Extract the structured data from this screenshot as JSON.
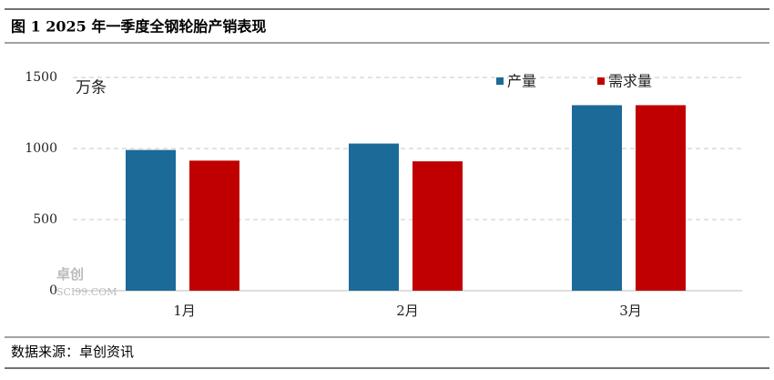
{
  "chart_data": {
    "type": "bar",
    "title": "图 1 2025 年一季度全钢轮胎产销表现",
    "y_label": "万条",
    "categories": [
      "1月",
      "2月",
      "3月"
    ],
    "series": [
      {
        "name": "产量",
        "color": "#1b6a98",
        "values": [
          990,
          1035,
          1305
        ]
      },
      {
        "name": "需求量",
        "color": "#c00000",
        "values": [
          915,
          910,
          1305
        ]
      }
    ],
    "ylim": [
      0,
      1500
    ],
    "yticks": [
      0,
      500,
      1000,
      1500
    ],
    "grid": true,
    "legend": "top-right",
    "watermark": [
      "卓创",
      "SCI99.COM"
    ],
    "source": "数据来源：卓创资讯"
  }
}
